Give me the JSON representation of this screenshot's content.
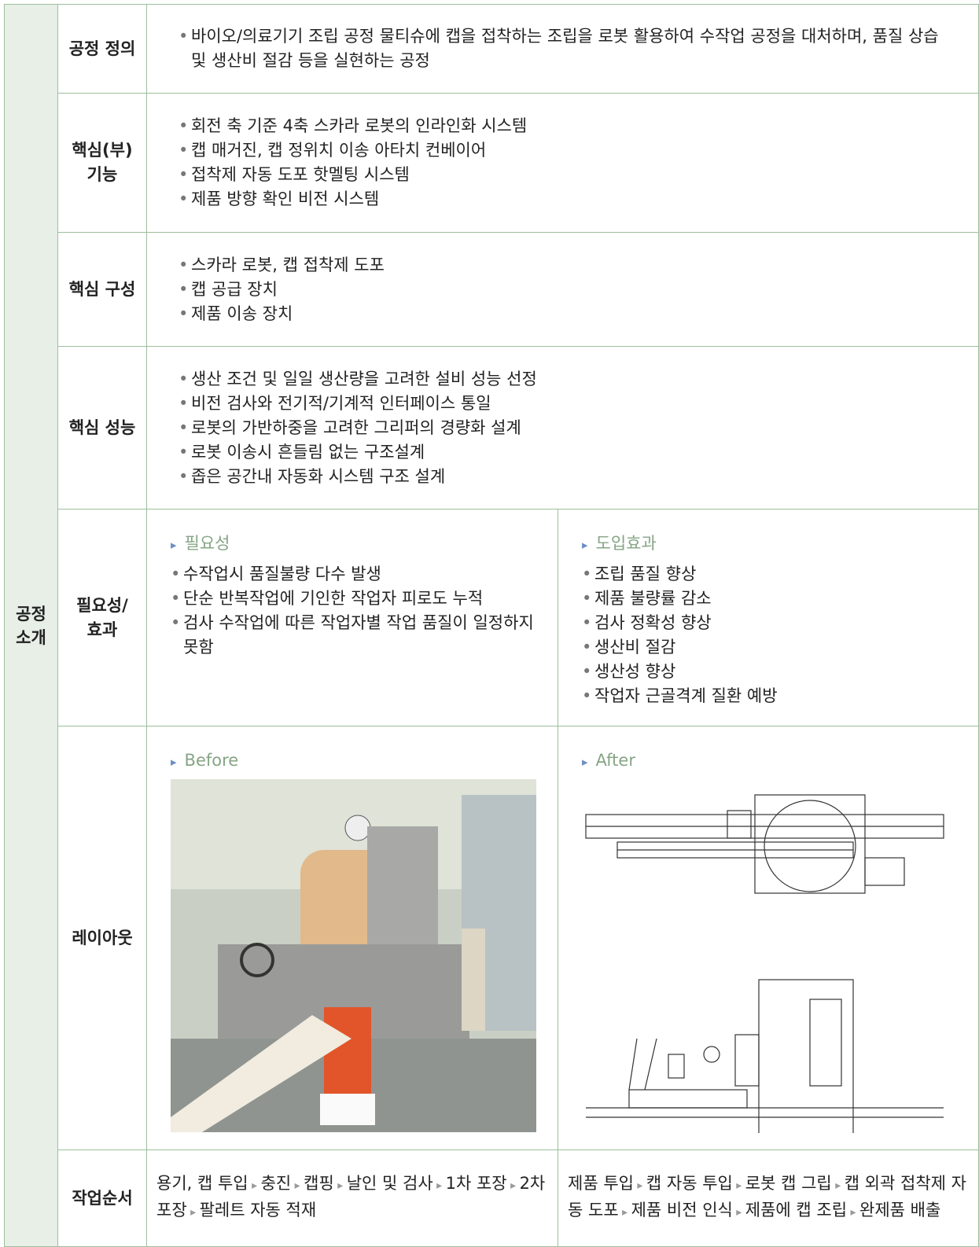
{
  "section": "공정 소개",
  "rows": {
    "definition": {
      "label": [
        "공정 정의"
      ],
      "items": [
        "바이오/의료기기 조립 공정 물티슈에 캡을 접착하는 조립을 로봇 활용하여 수작업 공정을 대처하며, 품질 상습 및 생산비 절감 등을 실현하는 공정"
      ]
    },
    "function": {
      "label": [
        "핵심(부)",
        "기능"
      ],
      "items": [
        "회전 축 기준 4축 스카라 로봇의 인라인화 시스템",
        "캡 매거진, 캡 정위치 이송 아타치 컨베이어",
        "접착제 자동 도포 핫멜팅 시스템",
        "제품 방향 확인 비전 시스템"
      ]
    },
    "composition": {
      "label": [
        "핵심 구성"
      ],
      "items": [
        "스카라 로봇, 캡 접착제 도포",
        "캡 공급 장치",
        "제품 이송 장치"
      ]
    },
    "performance": {
      "label": [
        "핵심 성능"
      ],
      "items": [
        "생산 조건 및 일일 생산량을 고려한 설비 성능 선정",
        "비전 검사와 전기적/기계적 인터페이스 통일",
        "로봇의 가반하중을 고려한 그리퍼의 경량화 설계",
        "로봇 이송시 흔들림 없는 구조설계",
        "좁은 공간내 자동화 시스템 구조 설계"
      ]
    },
    "necessity": {
      "label": [
        "필요성/",
        "효과"
      ],
      "left": {
        "heading": "필요성",
        "items": [
          "수작업시 품질불량 다수 발생",
          "단순 반복작업에 기인한 작업자 피로도 누적",
          "검사 수작업에 따른 작업자별 작업 품질이 일정하지 못함"
        ]
      },
      "right": {
        "heading": "도입효과",
        "items": [
          "조립 품질 향상",
          "제품 불량률 감소",
          "검사 정확성 향상",
          "생산비 절감",
          "생산성 향상",
          "작업자 근골격계 질환 예방"
        ]
      }
    },
    "layout": {
      "label": [
        "레이아웃"
      ],
      "left": {
        "heading": "Before"
      },
      "right": {
        "heading": "After"
      }
    },
    "sequence": {
      "label": [
        "작업순서"
      ],
      "left": [
        "용기, 캡 투입",
        "충진",
        "캡핑",
        "날인 및 검사",
        "1차 포장",
        "2차 포장",
        "팔레트 자동 적재"
      ],
      "right": [
        "제품 투입",
        "캡 자동 투입",
        "로봇 캡 그립",
        "캡 외곽 접착제 자동 도포",
        "제품 비전 인식",
        "제품에 캡 조립",
        "완제품 배출"
      ]
    }
  }
}
